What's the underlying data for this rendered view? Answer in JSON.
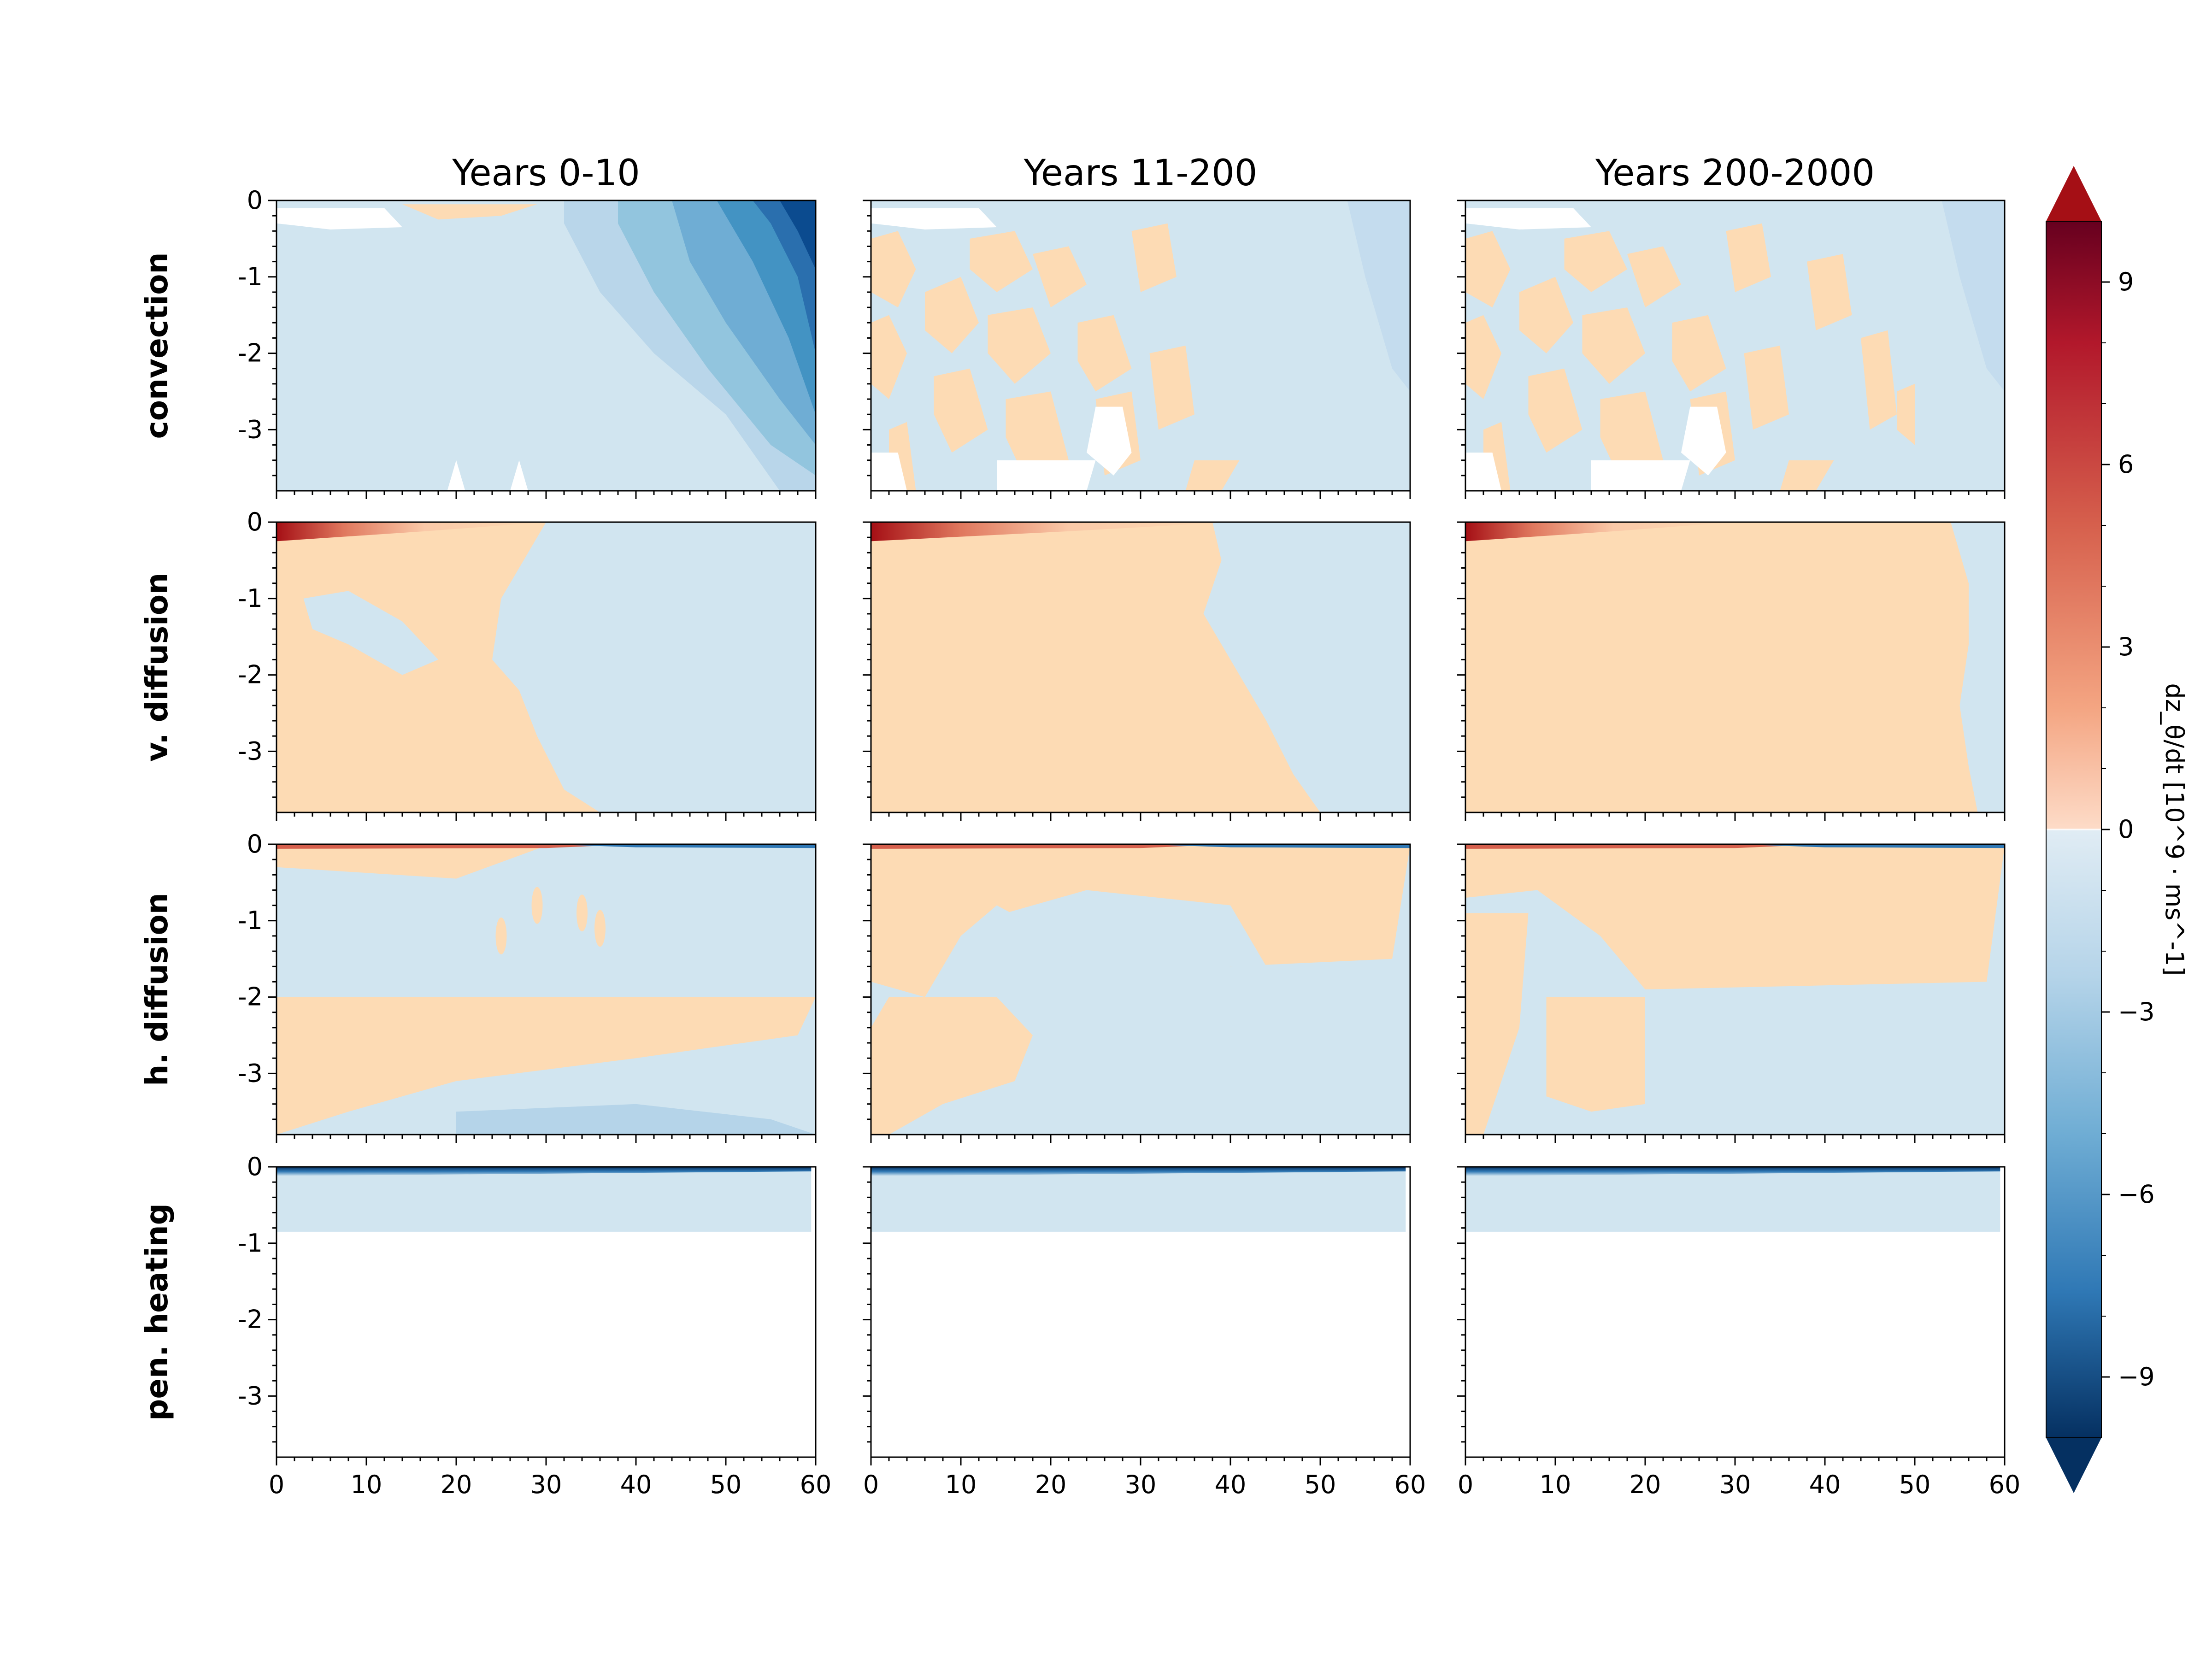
{
  "chart_data": {
    "type": "heatmap",
    "columns": [
      "Years 0-10",
      "Years 11-200",
      "Years 200-2000"
    ],
    "rows": [
      "convection",
      "v. diffusion",
      "h. diffusion",
      "pen. heating"
    ],
    "xlim": [
      0,
      60
    ],
    "ylim": [
      -3.8,
      0
    ],
    "x_ticks": [
      "0",
      "10",
      "20",
      "30",
      "40",
      "50",
      "60"
    ],
    "y_ticks": [
      "0",
      "-1",
      "-2",
      "-3"
    ],
    "colorbar": {
      "label": "dz_θ/dt [10^9 · ms^-1]",
      "range": [
        -10,
        10
      ],
      "extend": "both",
      "cmap": "RdBu_r",
      "ticks": [
        "9",
        "6",
        "3",
        "0",
        "−3",
        "−6",
        "−9"
      ],
      "tick_values": [
        9,
        6,
        3,
        0,
        -3,
        -6,
        -9
      ],
      "colors": {
        "deep_red": "#a50f15",
        "red": "#d6604d",
        "orange": "#f4a582",
        "light_orange": "#fddbb4",
        "pale_blue": "#d1e5f0",
        "light_blue": "#92c5de",
        "blue": "#4393c3",
        "deep_blue": "#0b4b8f"
      }
    }
  }
}
